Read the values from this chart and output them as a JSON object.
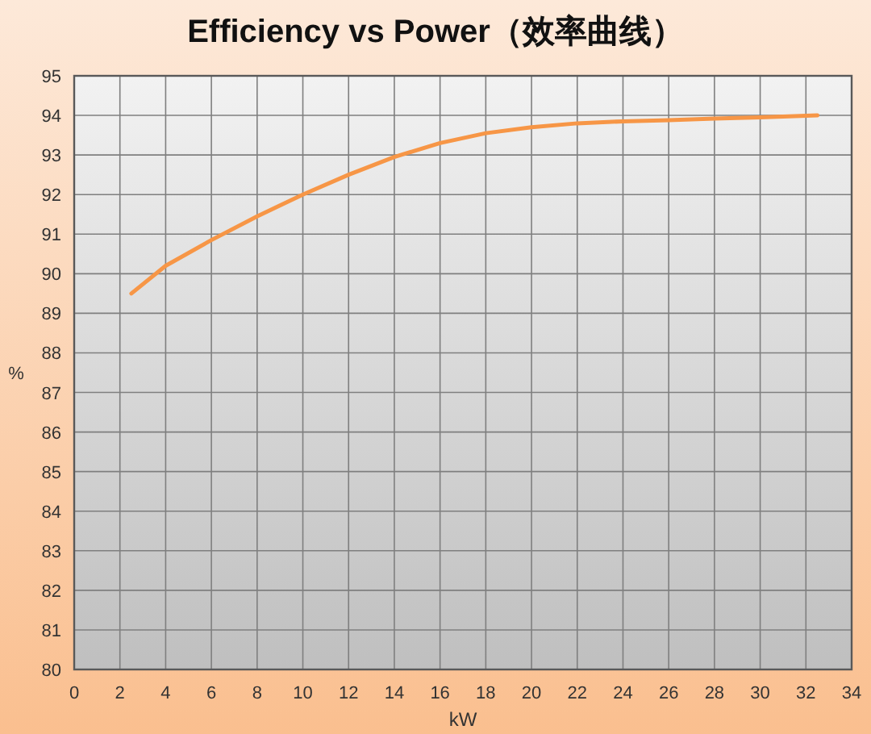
{
  "chart_data": {
    "type": "line",
    "title": "Efficiency vs Power（效率曲线）",
    "xlabel": "kW",
    "ylabel": "%",
    "x": [
      2.5,
      4,
      6,
      8,
      10,
      12,
      14,
      16,
      18,
      20,
      22,
      24,
      26,
      28,
      30,
      32.5
    ],
    "values": [
      89.5,
      90.2,
      90.85,
      91.45,
      92.0,
      92.5,
      92.95,
      93.3,
      93.55,
      93.7,
      93.8,
      93.85,
      93.88,
      93.92,
      93.95,
      94.0
    ],
    "color": "#f79646",
    "xlim": [
      0,
      34
    ],
    "ylim": [
      80,
      95
    ],
    "xticks": [
      0,
      2,
      4,
      6,
      8,
      10,
      12,
      14,
      16,
      18,
      20,
      22,
      24,
      26,
      28,
      30,
      32,
      34
    ],
    "yticks": [
      80,
      81,
      82,
      83,
      84,
      85,
      86,
      87,
      88,
      89,
      90,
      91,
      92,
      93,
      94,
      95
    ],
    "grid": true
  }
}
